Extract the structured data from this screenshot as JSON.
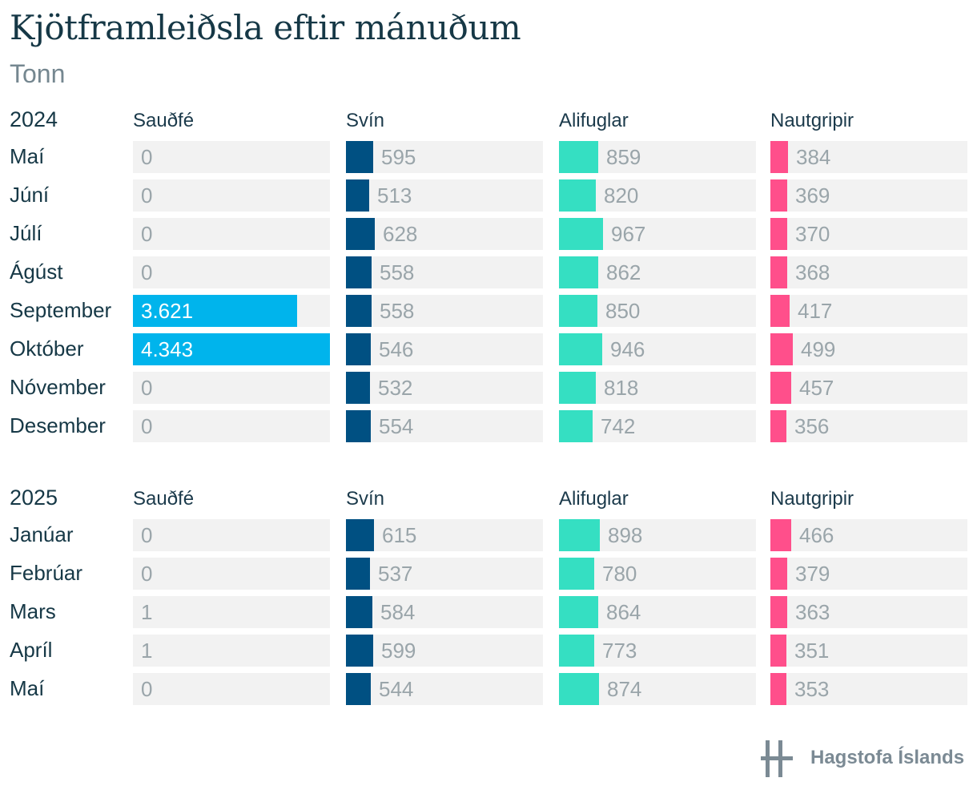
{
  "header": {
    "title": "Kjötframleiðsla eftir mánuðum",
    "subtitle": "Tonn"
  },
  "chart_data": {
    "type": "bar",
    "title": "Kjötframleiðsla eftir mánuðum",
    "subtitle": "Tonn",
    "series_names": [
      "Sauðfé",
      "Svín",
      "Alifuglar",
      "Nautgripir"
    ],
    "colors": {
      "Sauðfé": "#00b4ec",
      "Svín": "#005082",
      "Alifuglar": "#35dfc2",
      "Nautgripir": "#ff4f8b",
      "track": "#f2f2f2",
      "value_label": "#9aa5aa"
    },
    "scale_max": 4343,
    "groups": [
      {
        "year": "2024",
        "months": [
          "Maí",
          "Júní",
          "Júlí",
          "Ágúst",
          "September",
          "Október",
          "Nóvember",
          "Desember"
        ],
        "series": [
          {
            "name": "Sauðfé",
            "values": [
              0,
              0,
              0,
              0,
              3621,
              4343,
              0,
              0
            ],
            "labels": [
              "0",
              "0",
              "0",
              "0",
              "3.621",
              "4.343",
              "0",
              "0"
            ]
          },
          {
            "name": "Svín",
            "values": [
              595,
              513,
              628,
              558,
              558,
              546,
              532,
              554
            ],
            "labels": [
              "595",
              "513",
              "628",
              "558",
              "558",
              "546",
              "532",
              "554"
            ]
          },
          {
            "name": "Alifuglar",
            "values": [
              859,
              820,
              967,
              862,
              850,
              946,
              818,
              742
            ],
            "labels": [
              "859",
              "820",
              "967",
              "862",
              "850",
              "946",
              "818",
              "742"
            ]
          },
          {
            "name": "Nautgripir",
            "values": [
              384,
              369,
              370,
              368,
              417,
              499,
              457,
              356
            ],
            "labels": [
              "384",
              "369",
              "370",
              "368",
              "417",
              "499",
              "457",
              "356"
            ]
          }
        ]
      },
      {
        "year": "2025",
        "months": [
          "Janúar",
          "Febrúar",
          "Mars",
          "Apríl",
          "Maí"
        ],
        "series": [
          {
            "name": "Sauðfé",
            "values": [
              0,
              0,
              1,
              1,
              0
            ],
            "labels": [
              "0",
              "0",
              "1",
              "1",
              "0"
            ]
          },
          {
            "name": "Svín",
            "values": [
              615,
              537,
              584,
              599,
              544
            ],
            "labels": [
              "615",
              "537",
              "584",
              "599",
              "544"
            ]
          },
          {
            "name": "Alifuglar",
            "values": [
              898,
              780,
              864,
              773,
              874
            ],
            "labels": [
              "898",
              "780",
              "864",
              "773",
              "874"
            ]
          },
          {
            "name": "Nautgripir",
            "values": [
              466,
              379,
              363,
              351,
              353
            ],
            "labels": [
              "466",
              "379",
              "363",
              "351",
              "353"
            ]
          }
        ]
      }
    ]
  },
  "footer": {
    "logo_text": "Hagstofa Íslands",
    "logo_icon": "hagstofa-logo-icon"
  }
}
